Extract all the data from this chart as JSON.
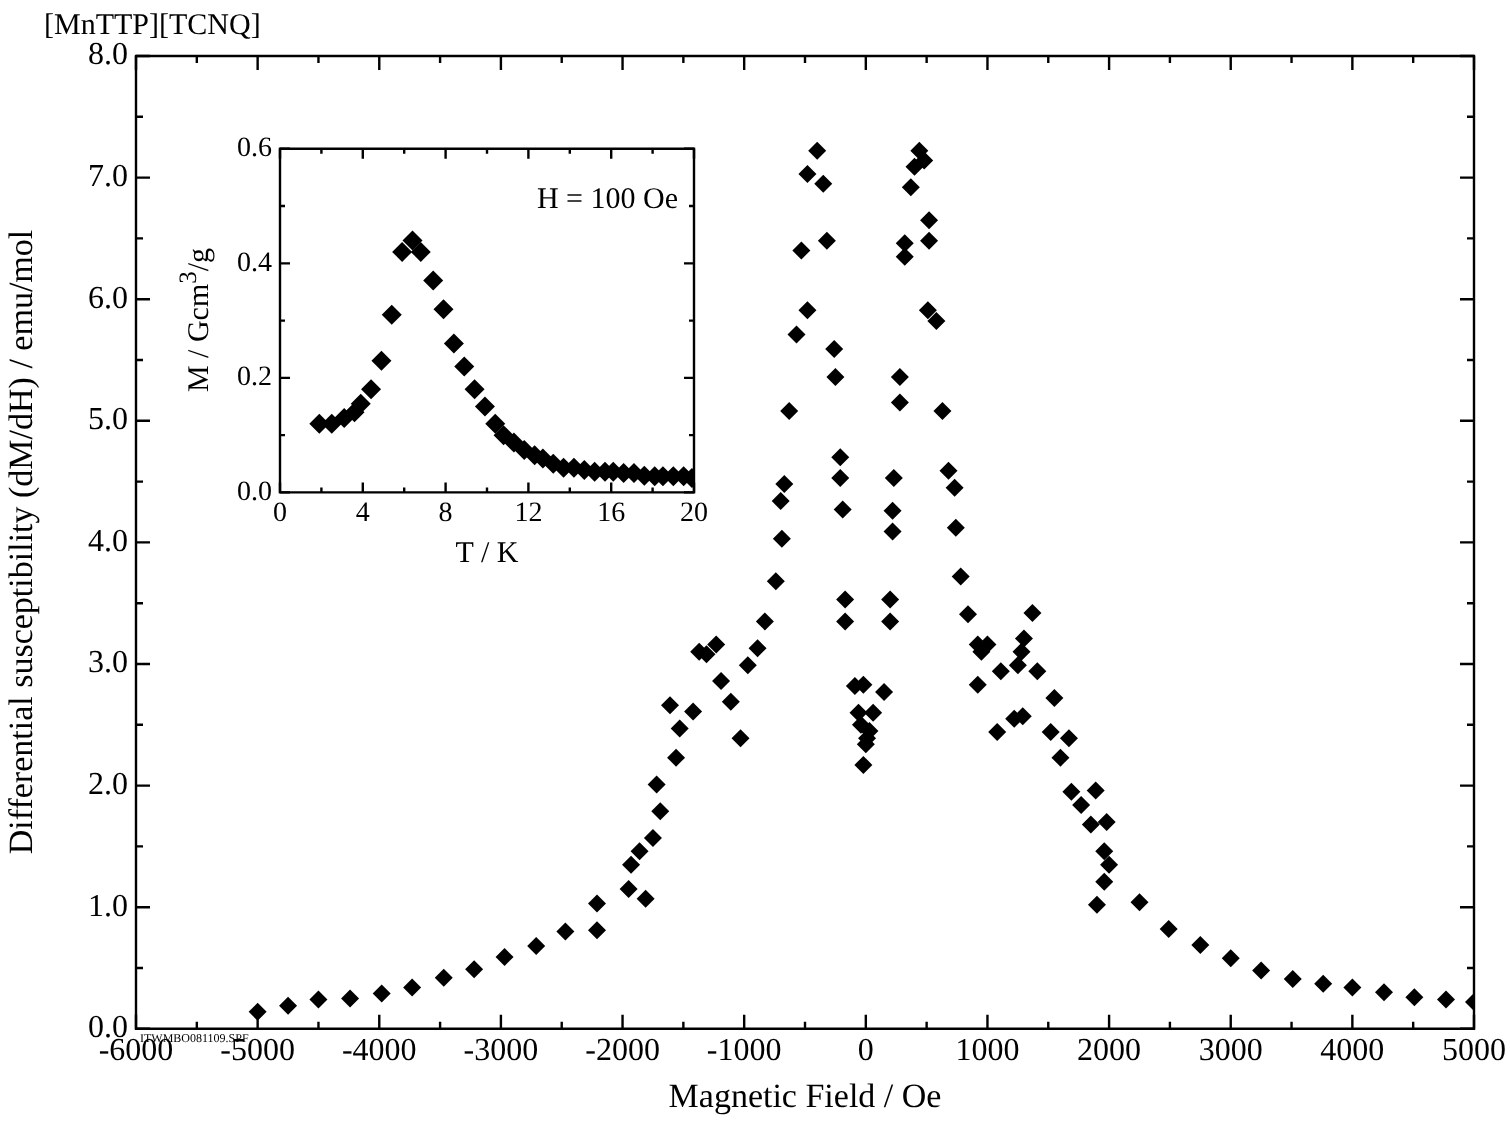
{
  "chart_data": [
    {
      "type": "scatter",
      "title": "[MnTTP][TCNQ]",
      "xlabel": "Magnetic Field / Oe",
      "ylabel": "Differential susceptibility (dM/dH) / emu/mol",
      "color": "#000000",
      "marker": "diamond",
      "x": [
        -5000,
        -4750,
        -4500,
        -4240,
        -3980,
        -3730,
        -3470,
        -3220,
        -2970,
        -2710,
        -2470,
        -2210,
        -2210,
        -1950,
        -1930,
        -1810,
        -1860,
        -1750,
        -1690,
        -1720,
        -1610,
        -1560,
        -1530,
        -1420,
        -1370,
        -1310,
        -1230,
        -1190,
        -1110,
        -1030,
        -970,
        -890,
        -830,
        -740,
        -690,
        -700,
        -670,
        -630,
        -570,
        -480,
        -530,
        -480,
        -400,
        -350,
        -320,
        -260,
        -250,
        -210,
        -210,
        -190,
        -170,
        -170,
        -90,
        -60,
        -40,
        0,
        -20,
        10,
        30,
        -20,
        60,
        150,
        200,
        200,
        220,
        220,
        230,
        280,
        280,
        320,
        320,
        370,
        400,
        440,
        480,
        520,
        520,
        510,
        580,
        630,
        680,
        730,
        740,
        780,
        840,
        920,
        950,
        920,
        1080,
        1250,
        1370,
        1300,
        1410,
        1290,
        1550,
        1520,
        1670,
        1600,
        1690,
        1770,
        1850,
        1890,
        1900,
        1980,
        1960,
        2000,
        1960,
        1000,
        1110,
        1220,
        1280,
        2250,
        2490,
        2750,
        3000,
        3250,
        3510,
        3760,
        4000,
        4260,
        4510,
        4770,
        5000
      ],
      "values": [
        0.14,
        0.19,
        0.24,
        0.25,
        0.29,
        0.34,
        0.42,
        0.49,
        0.59,
        0.68,
        0.8,
        0.81,
        1.03,
        1.15,
        1.35,
        1.07,
        1.46,
        1.57,
        1.79,
        2.01,
        2.66,
        2.23,
        2.47,
        2.61,
        3.1,
        3.08,
        3.16,
        2.86,
        2.69,
        2.39,
        2.99,
        3.13,
        3.35,
        3.68,
        4.03,
        4.34,
        4.48,
        5.08,
        5.71,
        5.91,
        6.4,
        7.03,
        7.22,
        6.95,
        6.48,
        5.59,
        5.36,
        4.7,
        4.53,
        4.27,
        3.53,
        3.35,
        2.82,
        2.6,
        2.5,
        2.34,
        2.83,
        2.39,
        2.45,
        2.17,
        2.6,
        2.77,
        3.53,
        3.35,
        4.09,
        4.26,
        4.53,
        5.15,
        5.36,
        6.46,
        6.35,
        6.92,
        7.09,
        7.22,
        7.14,
        6.65,
        6.48,
        5.91,
        5.82,
        5.08,
        4.59,
        4.45,
        4.12,
        3.72,
        3.41,
        3.16,
        3.1,
        2.83,
        2.44,
        2.99,
        3.42,
        3.21,
        2.94,
        2.57,
        2.72,
        2.44,
        2.39,
        2.23,
        1.95,
        1.84,
        1.68,
        1.96,
        1.02,
        1.7,
        1.46,
        1.35,
        1.21,
        3.16,
        2.94,
        2.55,
        3.1,
        1.04,
        0.82,
        0.69,
        0.58,
        0.48,
        0.41,
        0.37,
        0.34,
        0.3,
        0.26,
        0.24,
        0.22
      ],
      "xlim": [
        -6000,
        5000
      ],
      "xticks": [
        -6000,
        -5000,
        -4000,
        -3000,
        -2000,
        -1000,
        0,
        1000,
        2000,
        3000,
        4000,
        5000
      ],
      "ylim": [
        0,
        8
      ],
      "yticks": [
        {
          "value": 0,
          "label": "0.0"
        },
        {
          "value": 1,
          "label": "1.0"
        },
        {
          "value": 2,
          "label": "2.0"
        },
        {
          "value": 3,
          "label": "3.0"
        },
        {
          "value": 4,
          "label": "4.0"
        },
        {
          "value": 5,
          "label": "5.0"
        },
        {
          "value": 6,
          "label": "6.0"
        },
        {
          "value": 7,
          "label": "7.0"
        },
        {
          "value": 8,
          "label": "8.0"
        }
      ],
      "annotations": [
        "ITWMBO081109.SPF"
      ]
    },
    {
      "type": "scatter",
      "xlabel": "T / K",
      "ylabel": "M / Gcm$^{3}$/g",
      "color": "#000000",
      "marker": "diamond",
      "x": [
        1.9,
        2.5,
        3.1,
        3.6,
        3.9,
        4.4,
        4.9,
        5.4,
        5.9,
        6.4,
        6.8,
        7.4,
        7.9,
        8.4,
        8.9,
        9.4,
        9.9,
        10.4,
        10.8,
        11.3,
        11.8,
        12.3,
        12.7,
        13.2,
        13.7,
        14.2,
        14.7,
        15.2,
        15.7,
        16.1,
        16.6,
        17.1,
        17.6,
        18.1,
        18.5,
        19.0,
        19.5,
        19.9
      ],
      "values": [
        0.12,
        0.12,
        0.13,
        0.14,
        0.155,
        0.18,
        0.23,
        0.31,
        0.42,
        0.44,
        0.42,
        0.37,
        0.32,
        0.26,
        0.22,
        0.18,
        0.15,
        0.12,
        0.1,
        0.087,
        0.074,
        0.065,
        0.059,
        0.05,
        0.043,
        0.043,
        0.039,
        0.036,
        0.036,
        0.036,
        0.034,
        0.034,
        0.029,
        0.028,
        0.028,
        0.028,
        0.028,
        0.025
      ],
      "xlim": [
        0,
        20
      ],
      "xticks": [
        0,
        4,
        8,
        12,
        16,
        20
      ],
      "ylim": [
        0,
        0.6
      ],
      "yticks": [
        {
          "value": 0,
          "label": "0.0"
        },
        {
          "value": 0.2,
          "label": "0.2"
        },
        {
          "value": 0.4,
          "label": "0.4"
        },
        {
          "value": 0.6,
          "label": "0.6"
        }
      ],
      "annotations": [
        "H = 100 Oe"
      ]
    }
  ]
}
